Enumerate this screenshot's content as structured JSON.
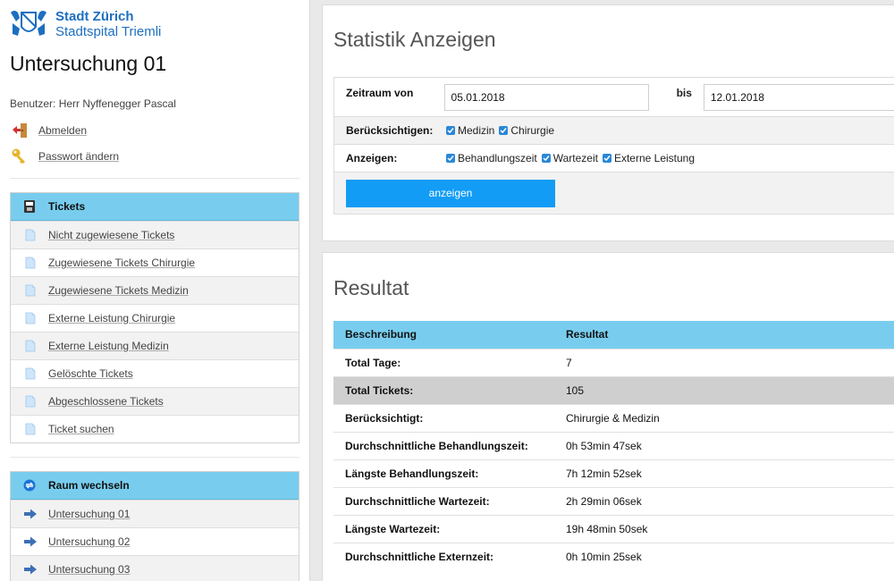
{
  "brand": {
    "city": "Stadt Zürich",
    "hospital": "Stadtspital Triemli"
  },
  "page_title": "Untersuchung 01",
  "user": {
    "label": "Benutzer: Herr Nyffenegger Pascal",
    "logout": "Abmelden",
    "change_password": "Passwort ändern"
  },
  "tickets_panel": {
    "title": "Tickets",
    "items": [
      "Nicht zugewiesene Tickets",
      "Zugewiesene Tickets Chirurgie",
      "Zugewiesene Tickets Medizin",
      "Externe Leistung Chirurgie",
      "Externe Leistung Medizin",
      "Gelöschte Tickets",
      "Abgeschlossene Tickets",
      "Ticket suchen"
    ]
  },
  "room_panel": {
    "title": "Raum wechseln",
    "items": [
      "Untersuchung 01",
      "Untersuchung 02",
      "Untersuchung 03"
    ]
  },
  "stats": {
    "title": "Statistik Anzeigen",
    "period_label": "Zeitraum von",
    "from_value": "05.01.2018",
    "to_label": "bis",
    "to_value": "12.01.2018",
    "consider_label": "Berücksichtigen:",
    "consider_options": [
      "Medizin",
      "Chirurgie"
    ],
    "show_label": "Anzeigen:",
    "show_options": [
      "Behandlungszeit",
      "Wartezeit",
      "Externe Leistung"
    ],
    "button": "anzeigen"
  },
  "result": {
    "title": "Resultat",
    "headers": [
      "Beschreibung",
      "Resultat"
    ],
    "rows": [
      [
        "Total Tage:",
        "7"
      ],
      [
        "Total Tickets:",
        "105"
      ],
      [
        "Berücksichtigt:",
        "Chirurgie & Medizin"
      ],
      [
        "Durchschnittliche Behandlungszeit:",
        "0h 53min 47sek"
      ],
      [
        "Längste Behandlungszeit:",
        "7h 12min 52sek"
      ],
      [
        "Durchschnittliche Wartezeit:",
        "2h 29min 06sek"
      ],
      [
        "Längste Wartezeit:",
        "19h 48min 50sek"
      ],
      [
        "Durchschnittliche Externzeit:",
        "0h 10min 25sek"
      ]
    ]
  },
  "colors": {
    "header_blue": "#78cdee",
    "button_blue": "#129cf5",
    "brand_blue": "#1d6fc0"
  }
}
